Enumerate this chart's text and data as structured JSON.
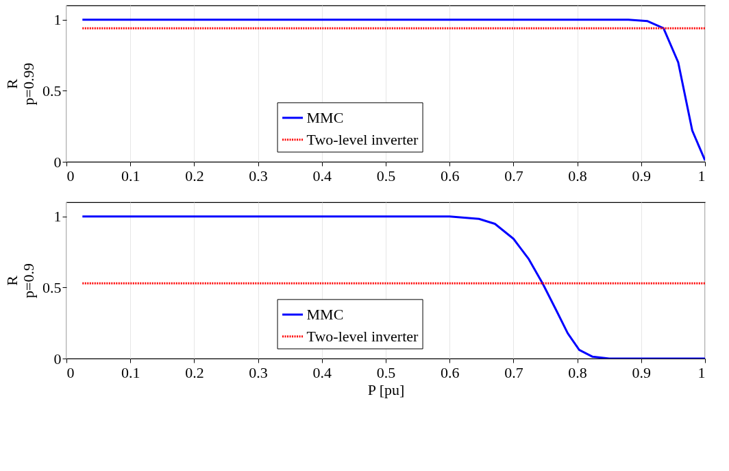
{
  "chart_data": [
    {
      "type": "line",
      "ylabel": "R\np=0.99",
      "xlim": [
        0,
        1
      ],
      "ylim": [
        0,
        1.1
      ],
      "xticks": [
        0,
        0.1,
        0.2,
        0.3,
        0.4,
        0.5,
        0.6,
        0.7,
        0.8,
        0.9,
        1
      ],
      "yticks": [
        0,
        0.5,
        1
      ],
      "grid": "x",
      "legend": "bottom",
      "series": [
        {
          "name": "MMC",
          "color": "#0000ff",
          "line_style": "solid",
          "x": [
            0.025,
            0.2,
            0.4,
            0.6,
            0.8,
            0.88,
            0.91,
            0.935,
            0.958,
            0.98,
            1.0
          ],
          "values": [
            1,
            1,
            1,
            1,
            1,
            1,
            0.99,
            0.94,
            0.7,
            0.22,
            0.01
          ]
        },
        {
          "name": "Two-level inverter",
          "color": "#ff0000",
          "line_style": "dotted",
          "x": [
            0.025,
            1.0
          ],
          "values": [
            0.94,
            0.94
          ]
        }
      ]
    },
    {
      "type": "line",
      "ylabel": "R\np=0.9",
      "xlabel": "P [pu]",
      "xlim": [
        0,
        1
      ],
      "ylim": [
        0,
        1.1
      ],
      "xticks": [
        0,
        0.1,
        0.2,
        0.3,
        0.4,
        0.5,
        0.6,
        0.7,
        0.8,
        0.9,
        1
      ],
      "yticks": [
        0,
        0.5,
        1
      ],
      "grid": "x",
      "legend": "bottom",
      "series": [
        {
          "name": "MMC",
          "color": "#0000ff",
          "line_style": "solid",
          "x": [
            0.025,
            0.2,
            0.4,
            0.6,
            0.646,
            0.671,
            0.7,
            0.724,
            0.746,
            0.767,
            0.785,
            0.803,
            0.824,
            0.85,
            0.9,
            1.0
          ],
          "values": [
            1,
            1,
            1,
            1,
            0.983,
            0.948,
            0.843,
            0.7,
            0.526,
            0.34,
            0.178,
            0.061,
            0.013,
            0,
            0,
            0
          ]
        },
        {
          "name": "Two-level inverter",
          "color": "#ff0000",
          "line_style": "dotted",
          "x": [
            0.025,
            1.0
          ],
          "values": [
            0.53,
            0.53
          ]
        }
      ]
    }
  ]
}
